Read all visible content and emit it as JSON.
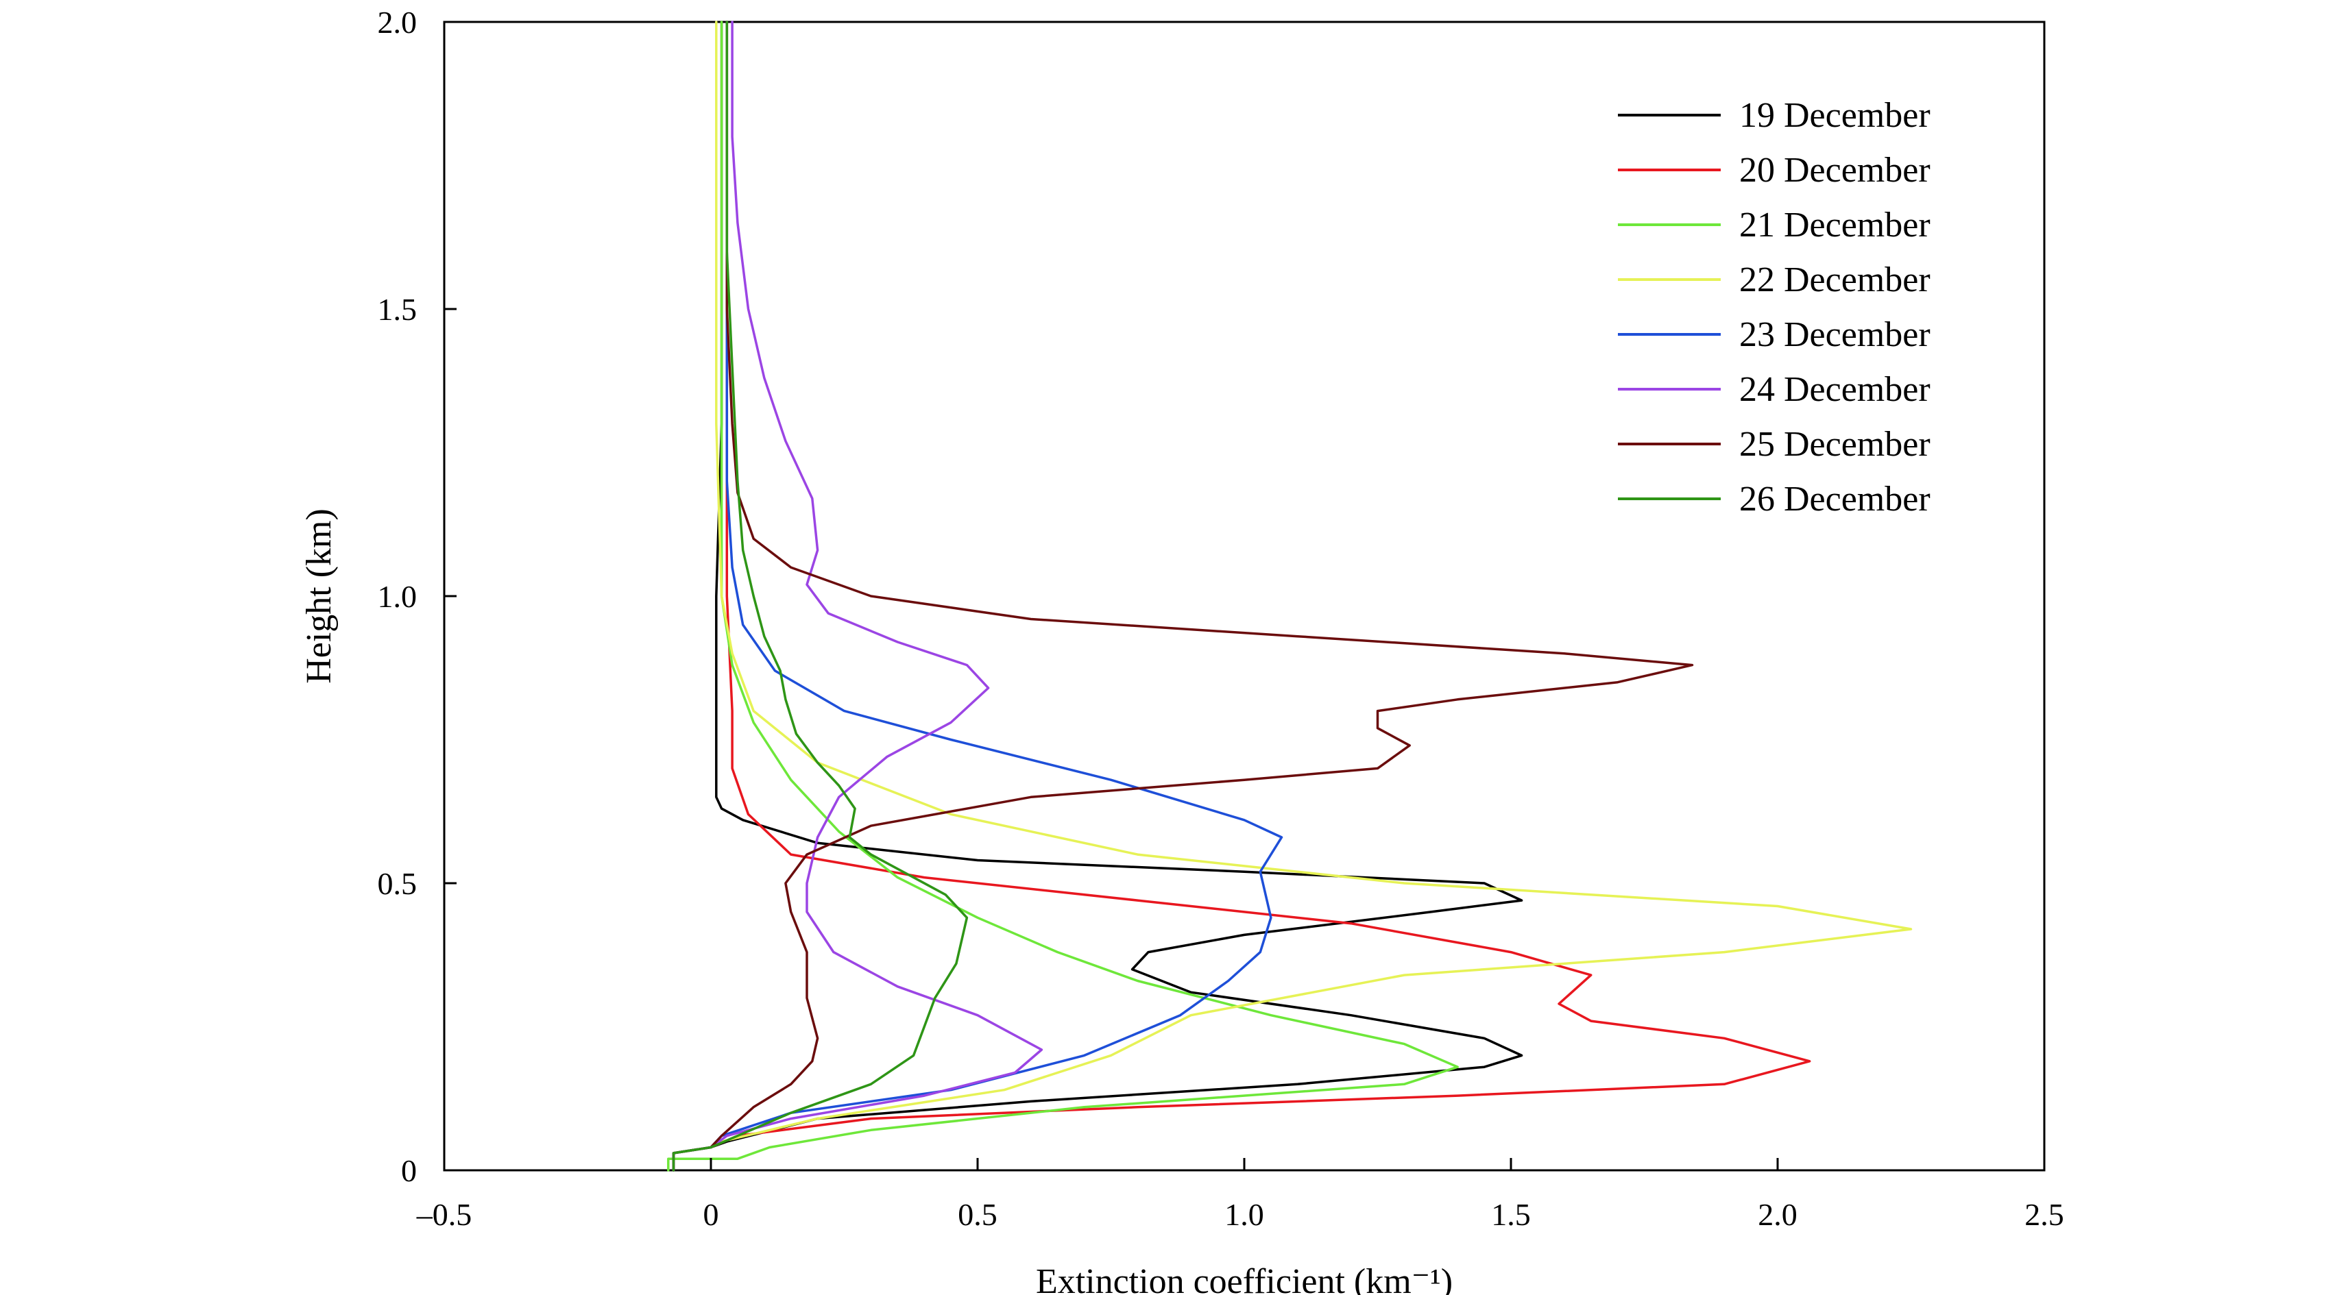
{
  "chart_data": {
    "type": "line",
    "title": "",
    "xlabel": "Extinction coefficient (km⁻¹)",
    "ylabel": "Height (km)",
    "xlim": [
      -0.5,
      2.5
    ],
    "ylim": [
      0,
      2.0
    ],
    "xticks": [
      -0.5,
      0,
      0.5,
      1.0,
      1.5,
      2.0,
      2.5
    ],
    "xtick_labels": [
      "–0.5",
      "0",
      "0.5",
      "1.0",
      "1.5",
      "2.0",
      "2.5"
    ],
    "yticks": [
      0,
      0.5,
      1.0,
      1.5,
      2.0
    ],
    "ytick_labels": [
      "0",
      "0.5",
      "1.0",
      "1.5",
      "2.0"
    ],
    "grid": false,
    "legend_position": "top-right",
    "series": [
      {
        "name": "19 December",
        "color": "#000000",
        "points": [
          [
            -0.07,
            0.0
          ],
          [
            -0.07,
            0.03
          ],
          [
            0.0,
            0.04
          ],
          [
            0.03,
            0.05
          ],
          [
            0.2,
            0.09
          ],
          [
            0.6,
            0.12
          ],
          [
            1.1,
            0.15
          ],
          [
            1.45,
            0.18
          ],
          [
            1.52,
            0.2
          ],
          [
            1.45,
            0.23
          ],
          [
            1.2,
            0.27
          ],
          [
            0.9,
            0.31
          ],
          [
            0.79,
            0.35
          ],
          [
            0.82,
            0.38
          ],
          [
            1.0,
            0.41
          ],
          [
            1.35,
            0.45
          ],
          [
            1.52,
            0.47
          ],
          [
            1.45,
            0.5
          ],
          [
            1.0,
            0.52
          ],
          [
            0.5,
            0.54
          ],
          [
            0.2,
            0.57
          ],
          [
            0.06,
            0.61
          ],
          [
            0.02,
            0.63
          ],
          [
            0.01,
            0.65
          ],
          [
            0.01,
            1.0
          ],
          [
            0.02,
            1.3
          ],
          [
            0.02,
            1.6
          ],
          [
            0.02,
            2.0
          ]
        ]
      },
      {
        "name": "20 December",
        "color": "#e8171f",
        "points": [
          [
            -0.07,
            0.0
          ],
          [
            -0.07,
            0.03
          ],
          [
            0.0,
            0.04
          ],
          [
            0.05,
            0.06
          ],
          [
            0.3,
            0.09
          ],
          [
            0.8,
            0.11
          ],
          [
            1.4,
            0.13
          ],
          [
            1.9,
            0.15
          ],
          [
            2.06,
            0.19
          ],
          [
            1.9,
            0.23
          ],
          [
            1.65,
            0.26
          ],
          [
            1.59,
            0.29
          ],
          [
            1.65,
            0.34
          ],
          [
            1.5,
            0.38
          ],
          [
            1.2,
            0.43
          ],
          [
            0.8,
            0.47
          ],
          [
            0.4,
            0.51
          ],
          [
            0.15,
            0.55
          ],
          [
            0.07,
            0.62
          ],
          [
            0.04,
            0.7
          ],
          [
            0.04,
            0.8
          ],
          [
            0.03,
            1.0
          ],
          [
            0.03,
            1.4
          ],
          [
            0.03,
            2.0
          ]
        ]
      },
      {
        "name": "21 December",
        "color": "#6ee73a",
        "points": [
          [
            -0.08,
            0.0
          ],
          [
            -0.08,
            0.02
          ],
          [
            0.05,
            0.02
          ],
          [
            0.11,
            0.04
          ],
          [
            0.3,
            0.07
          ],
          [
            0.7,
            0.11
          ],
          [
            1.3,
            0.15
          ],
          [
            1.4,
            0.18
          ],
          [
            1.3,
            0.22
          ],
          [
            1.05,
            0.27
          ],
          [
            0.8,
            0.33
          ],
          [
            0.65,
            0.38
          ],
          [
            0.5,
            0.44
          ],
          [
            0.35,
            0.51
          ],
          [
            0.24,
            0.59
          ],
          [
            0.15,
            0.68
          ],
          [
            0.08,
            0.78
          ],
          [
            0.04,
            0.88
          ],
          [
            0.02,
            1.0
          ],
          [
            0.02,
            1.2
          ],
          [
            0.02,
            1.5
          ],
          [
            0.02,
            2.0
          ]
        ]
      },
      {
        "name": "22 December",
        "color": "#e6f256",
        "points": [
          [
            -0.07,
            0.0
          ],
          [
            -0.07,
            0.03
          ],
          [
            0.0,
            0.04
          ],
          [
            0.02,
            0.05
          ],
          [
            0.2,
            0.09
          ],
          [
            0.55,
            0.14
          ],
          [
            0.75,
            0.2
          ],
          [
            0.9,
            0.27
          ],
          [
            1.3,
            0.34
          ],
          [
            1.9,
            0.38
          ],
          [
            2.25,
            0.42
          ],
          [
            2.0,
            0.46
          ],
          [
            1.3,
            0.5
          ],
          [
            0.8,
            0.55
          ],
          [
            0.45,
            0.62
          ],
          [
            0.2,
            0.71
          ],
          [
            0.08,
            0.8
          ],
          [
            0.04,
            0.9
          ],
          [
            0.02,
            1.0
          ],
          [
            0.01,
            1.3
          ],
          [
            0.01,
            1.6
          ],
          [
            0.01,
            2.0
          ]
        ]
      },
      {
        "name": "23 December",
        "color": "#1e4fd8",
        "points": [
          [
            -0.07,
            0.0
          ],
          [
            -0.07,
            0.03
          ],
          [
            0.0,
            0.04
          ],
          [
            0.02,
            0.06
          ],
          [
            0.15,
            0.1
          ],
          [
            0.45,
            0.14
          ],
          [
            0.7,
            0.2
          ],
          [
            0.88,
            0.27
          ],
          [
            0.97,
            0.33
          ],
          [
            1.03,
            0.38
          ],
          [
            1.05,
            0.44
          ],
          [
            1.03,
            0.52
          ],
          [
            1.07,
            0.58
          ],
          [
            1.0,
            0.61
          ],
          [
            0.75,
            0.68
          ],
          [
            0.45,
            0.75
          ],
          [
            0.25,
            0.8
          ],
          [
            0.12,
            0.87
          ],
          [
            0.06,
            0.95
          ],
          [
            0.04,
            1.05
          ],
          [
            0.03,
            1.2
          ],
          [
            0.03,
            1.5
          ],
          [
            0.03,
            2.0
          ]
        ]
      },
      {
        "name": "24 December",
        "color": "#9b45e4",
        "points": [
          [
            -0.07,
            0.0
          ],
          [
            -0.07,
            0.03
          ],
          [
            0.0,
            0.04
          ],
          [
            0.03,
            0.06
          ],
          [
            0.15,
            0.09
          ],
          [
            0.4,
            0.13
          ],
          [
            0.57,
            0.17
          ],
          [
            0.62,
            0.21
          ],
          [
            0.5,
            0.27
          ],
          [
            0.35,
            0.32
          ],
          [
            0.23,
            0.38
          ],
          [
            0.18,
            0.45
          ],
          [
            0.18,
            0.5
          ],
          [
            0.2,
            0.58
          ],
          [
            0.24,
            0.65
          ],
          [
            0.33,
            0.72
          ],
          [
            0.45,
            0.78
          ],
          [
            0.52,
            0.84
          ],
          [
            0.48,
            0.88
          ],
          [
            0.35,
            0.92
          ],
          [
            0.22,
            0.97
          ],
          [
            0.18,
            1.02
          ],
          [
            0.2,
            1.08
          ],
          [
            0.19,
            1.17
          ],
          [
            0.14,
            1.27
          ],
          [
            0.1,
            1.38
          ],
          [
            0.07,
            1.5
          ],
          [
            0.05,
            1.65
          ],
          [
            0.04,
            1.8
          ],
          [
            0.04,
            2.0
          ]
        ]
      },
      {
        "name": "25 December",
        "color": "#6b0d0d",
        "points": [
          [
            -0.07,
            0.0
          ],
          [
            -0.07,
            0.03
          ],
          [
            0.0,
            0.04
          ],
          [
            0.02,
            0.06
          ],
          [
            0.08,
            0.11
          ],
          [
            0.15,
            0.15
          ],
          [
            0.19,
            0.19
          ],
          [
            0.2,
            0.23
          ],
          [
            0.18,
            0.3
          ],
          [
            0.18,
            0.38
          ],
          [
            0.15,
            0.45
          ],
          [
            0.14,
            0.5
          ],
          [
            0.18,
            0.55
          ],
          [
            0.3,
            0.6
          ],
          [
            0.6,
            0.65
          ],
          [
            1.0,
            0.68
          ],
          [
            1.25,
            0.7
          ],
          [
            1.31,
            0.74
          ],
          [
            1.25,
            0.77
          ],
          [
            1.25,
            0.8
          ],
          [
            1.4,
            0.82
          ],
          [
            1.7,
            0.85
          ],
          [
            1.84,
            0.88
          ],
          [
            1.6,
            0.9
          ],
          [
            1.1,
            0.93
          ],
          [
            0.6,
            0.96
          ],
          [
            0.3,
            1.0
          ],
          [
            0.15,
            1.05
          ],
          [
            0.08,
            1.1
          ],
          [
            0.05,
            1.18
          ],
          [
            0.04,
            1.3
          ],
          [
            0.03,
            1.5
          ],
          [
            0.03,
            2.0
          ]
        ]
      },
      {
        "name": "26 December",
        "color": "#2e9516",
        "points": [
          [
            -0.07,
            0.0
          ],
          [
            -0.07,
            0.03
          ],
          [
            0.0,
            0.04
          ],
          [
            0.05,
            0.06
          ],
          [
            0.15,
            0.1
          ],
          [
            0.3,
            0.15
          ],
          [
            0.38,
            0.2
          ],
          [
            0.4,
            0.25
          ],
          [
            0.42,
            0.3
          ],
          [
            0.46,
            0.36
          ],
          [
            0.48,
            0.44
          ],
          [
            0.44,
            0.48
          ],
          [
            0.38,
            0.51
          ],
          [
            0.3,
            0.55
          ],
          [
            0.26,
            0.58
          ],
          [
            0.27,
            0.63
          ],
          [
            0.24,
            0.67
          ],
          [
            0.2,
            0.71
          ],
          [
            0.16,
            0.76
          ],
          [
            0.14,
            0.82
          ],
          [
            0.13,
            0.87
          ],
          [
            0.1,
            0.93
          ],
          [
            0.08,
            1.0
          ],
          [
            0.06,
            1.08
          ],
          [
            0.05,
            1.2
          ],
          [
            0.04,
            1.4
          ],
          [
            0.03,
            1.6
          ],
          [
            0.03,
            2.0
          ]
        ]
      }
    ]
  }
}
